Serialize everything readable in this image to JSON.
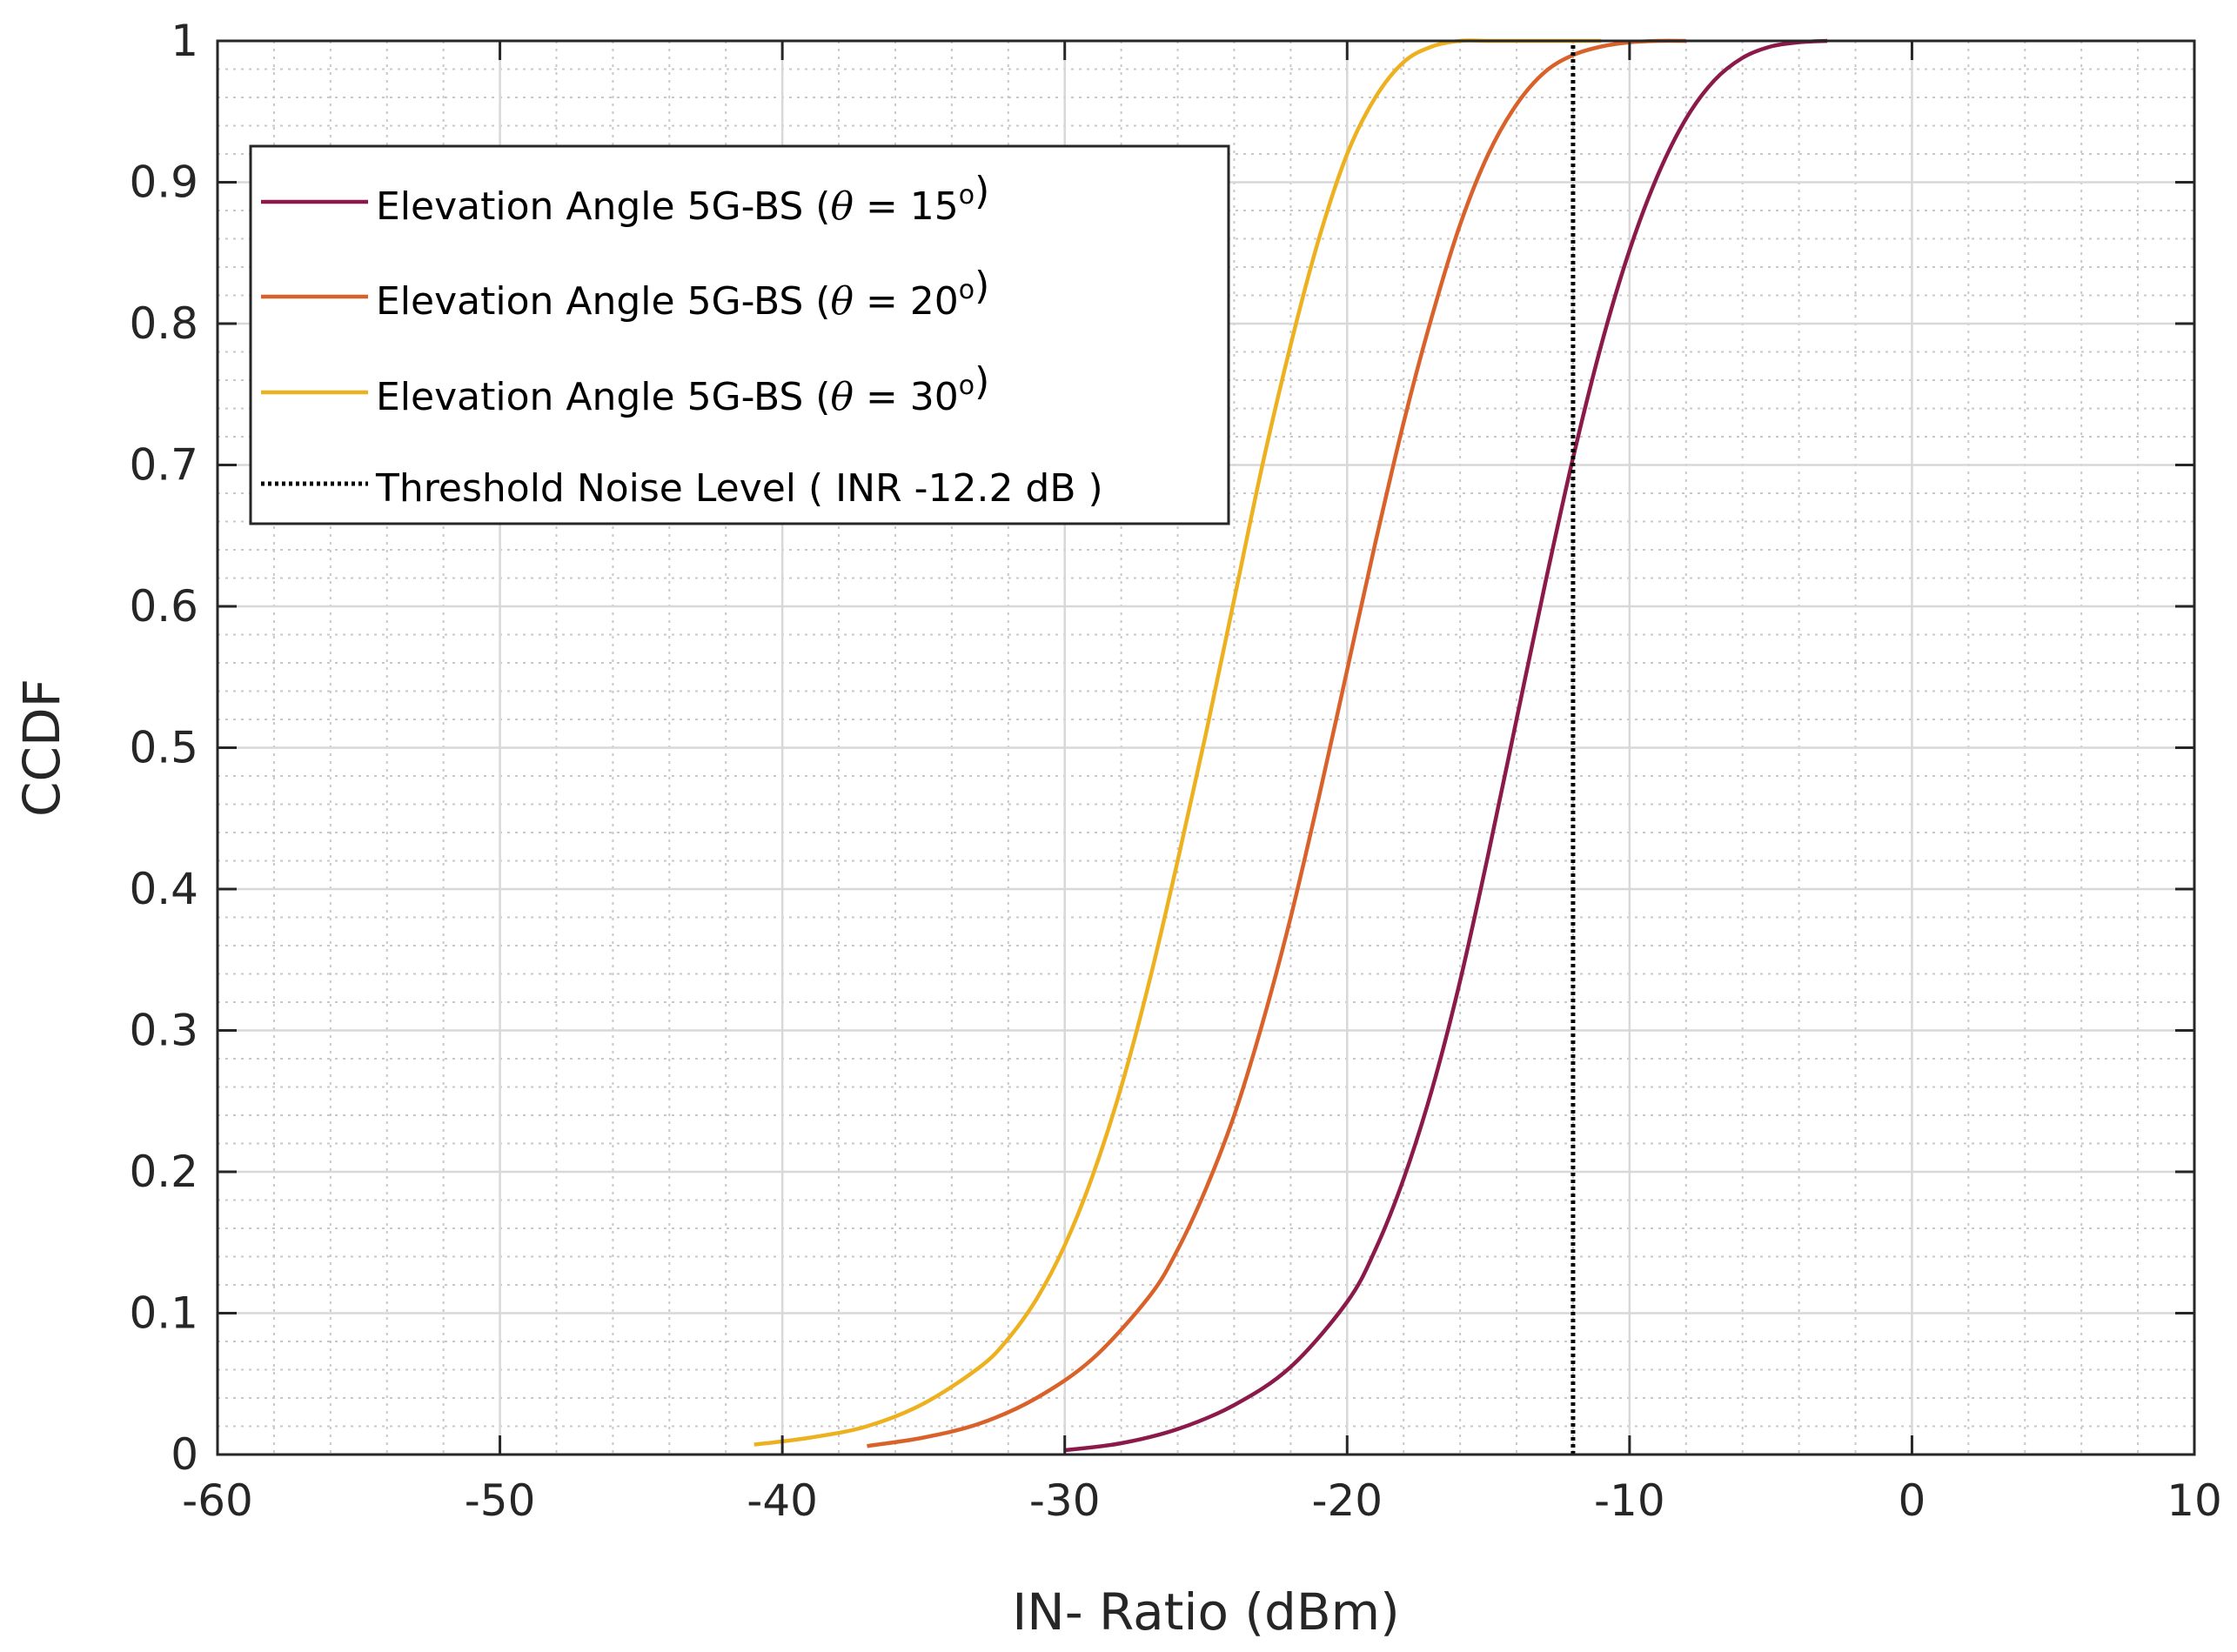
{
  "chart_data": {
    "type": "line",
    "title": "",
    "xlabel": "IN- Ratio (dBm)",
    "ylabel": "CCDF",
    "xlim": [
      -60,
      10
    ],
    "ylim": [
      0,
      1
    ],
    "xticks": [
      -60,
      -50,
      -40,
      -30,
      -20,
      -10,
      0,
      10
    ],
    "xtick_labels": [
      "-60",
      "-50",
      "-40",
      "-30",
      "-20",
      "-10",
      "0",
      "10"
    ],
    "yticks": [
      0,
      0.1,
      0.2,
      0.3,
      0.4,
      0.5,
      0.6,
      0.7,
      0.8,
      0.9,
      1
    ],
    "ytick_labels": [
      "0",
      "0.1",
      "0.2",
      "0.3",
      "0.4",
      "0.5",
      "0.6",
      "0.7",
      "0.8",
      "0.9",
      "1"
    ],
    "grid": true,
    "minor_grid": true,
    "legend_position": "top-left",
    "series": [
      {
        "name": "Elevation Angle 5G-BS (θ = 15°)",
        "label_prefix": "Elevation Angle 5G-BS (",
        "label_symbol": "θ",
        "label_value": " = 15",
        "label_sup": "o",
        "label_suffix": ")",
        "color": "#8b1a4a",
        "dash": "solid",
        "x": [
          -30,
          -28,
          -26,
          -24,
          -22,
          -20,
          -19,
          -18,
          -17,
          -16,
          -15,
          -14,
          -13,
          -12,
          -11,
          -10,
          -9,
          -8,
          -7,
          -6,
          -5,
          -4,
          -3
        ],
        "y": [
          0.003,
          0.008,
          0.018,
          0.035,
          0.062,
          0.108,
          0.145,
          0.195,
          0.258,
          0.335,
          0.425,
          0.52,
          0.615,
          0.705,
          0.785,
          0.852,
          0.905,
          0.945,
          0.972,
          0.988,
          0.996,
          0.999,
          1.0
        ]
      },
      {
        "name": "Elevation Angle 5G-BS (θ = 20°)",
        "label_prefix": "Elevation Angle 5G-BS (",
        "label_symbol": "θ",
        "label_value": " = 20",
        "label_sup": "o",
        "label_suffix": ")",
        "color": "#d9622b",
        "dash": "solid",
        "x": [
          -37,
          -35,
          -33,
          -31,
          -29,
          -27,
          -26,
          -25,
          -24,
          -23,
          -22,
          -21,
          -20,
          -19,
          -18,
          -17,
          -16,
          -15,
          -14,
          -13,
          -12,
          -11,
          -10,
          -9,
          -8
        ],
        "y": [
          0.006,
          0.012,
          0.022,
          0.04,
          0.068,
          0.112,
          0.145,
          0.188,
          0.24,
          0.305,
          0.38,
          0.465,
          0.555,
          0.645,
          0.73,
          0.805,
          0.87,
          0.92,
          0.955,
          0.978,
          0.99,
          0.996,
          0.999,
          1.0,
          1.0
        ]
      },
      {
        "name": "Elevation Angle 5G-BS (θ = 30°)",
        "label_prefix": "Elevation Angle 5G-BS (",
        "label_symbol": "θ",
        "label_value": " = 30",
        "label_sup": "o",
        "label_suffix": ")",
        "color": "#edb120",
        "dash": "solid",
        "x": [
          -41,
          -39,
          -37,
          -35,
          -33,
          -32,
          -31,
          -30,
          -29,
          -28,
          -27,
          -26,
          -25,
          -24,
          -23,
          -22,
          -21,
          -20,
          -19,
          -18,
          -17,
          -16,
          -15,
          -14,
          -13,
          -12,
          -11
        ],
        "y": [
          0.007,
          0.012,
          0.02,
          0.036,
          0.062,
          0.082,
          0.11,
          0.148,
          0.198,
          0.26,
          0.335,
          0.42,
          0.51,
          0.605,
          0.7,
          0.785,
          0.86,
          0.92,
          0.96,
          0.985,
          0.996,
          1.0,
          1.0,
          1.0,
          1.0,
          1.0,
          1.0
        ]
      },
      {
        "name": "Threshold Noise Level ( INR -12.2 dB )",
        "label_prefix": "Threshold Noise Level ( INR -12.2 dB )",
        "label_symbol": "",
        "label_value": "",
        "label_sup": "",
        "label_suffix": "",
        "color": "#000000",
        "dash": "dotted",
        "x": [
          -12,
          -12
        ],
        "y": [
          0,
          1
        ]
      }
    ]
  }
}
